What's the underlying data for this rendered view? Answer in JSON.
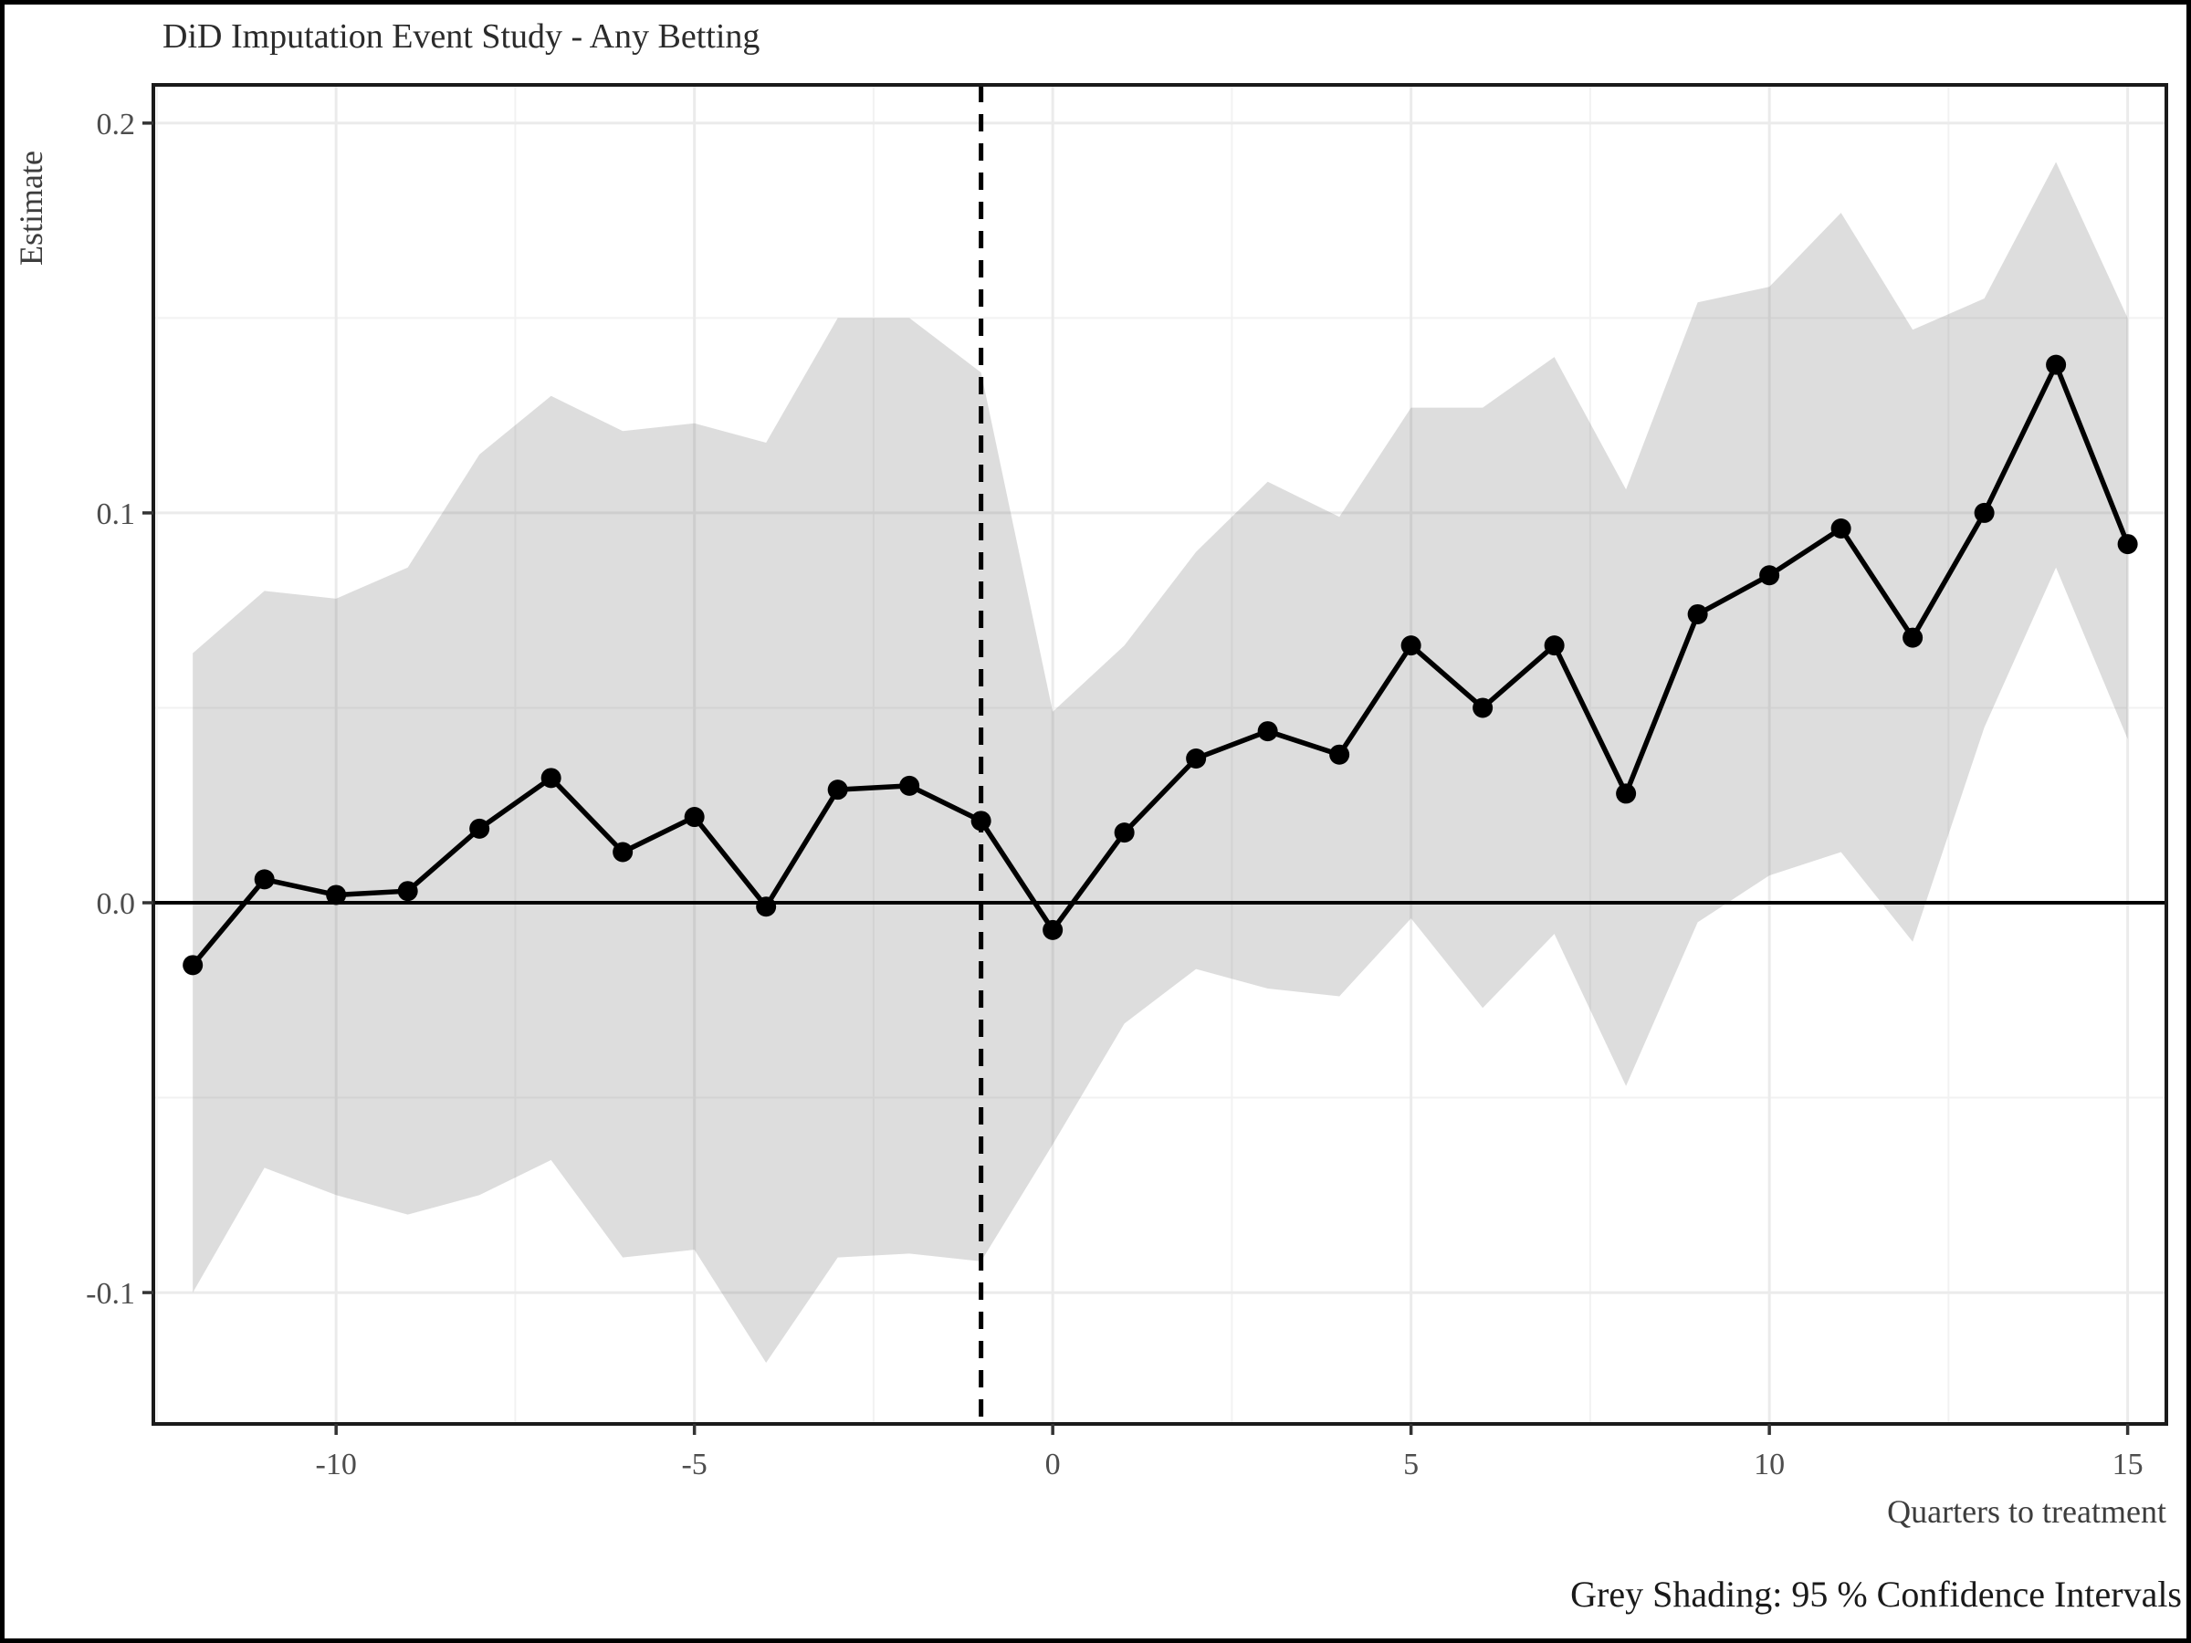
{
  "title": "DiD Imputation Event Study - Any Betting",
  "footer": "Grey Shading: 95 % Confidence Intervals",
  "chart_data": {
    "type": "line",
    "title": "DiD Imputation Event Study - Any Betting",
    "subtitle": "",
    "xlabel": "Quarters to treatment",
    "ylabel": "Estimate",
    "xlim": [
      -12.55,
      15.54
    ],
    "ylim": [
      -0.1337,
      0.2098
    ],
    "grid": true,
    "legend_position": "none",
    "band_meaning": "95 % Confidence Intervals (grey shading)",
    "reference_lines": {
      "zero_line_y": 0.0,
      "treatment_dashed_x": -1
    },
    "x_major_ticks": [
      {
        "v": -10,
        "label": "-10"
      },
      {
        "v": -5,
        "label": "-5"
      },
      {
        "v": 0,
        "label": "0"
      },
      {
        "v": 5,
        "label": "5"
      },
      {
        "v": 10,
        "label": "10"
      },
      {
        "v": 15,
        "label": "15"
      }
    ],
    "x_minor_ticks": [
      -12.5,
      -7.5,
      -2.5,
      2.5,
      7.5,
      12.5
    ],
    "y_major_ticks": [
      {
        "v": 0.2,
        "label": "0.2"
      },
      {
        "v": 0.1,
        "label": "0.1"
      },
      {
        "v": 0.0,
        "label": "0.0"
      },
      {
        "v": -0.1,
        "label": "-0.1"
      }
    ],
    "y_minor_ticks": [
      0.15,
      0.05,
      -0.05
    ],
    "series": [
      {
        "name": "estimate",
        "points": [
          {
            "x": -12,
            "estimate": -0.016,
            "lower": -0.1,
            "upper": 0.064
          },
          {
            "x": -11,
            "estimate": 0.006,
            "lower": -0.068,
            "upper": 0.08
          },
          {
            "x": -10,
            "estimate": 0.002,
            "lower": -0.075,
            "upper": 0.078
          },
          {
            "x": -9,
            "estimate": 0.003,
            "lower": -0.08,
            "upper": 0.086
          },
          {
            "x": -8,
            "estimate": 0.019,
            "lower": -0.075,
            "upper": 0.115
          },
          {
            "x": -7,
            "estimate": 0.032,
            "lower": -0.066,
            "upper": 0.13
          },
          {
            "x": -6,
            "estimate": 0.013,
            "lower": -0.091,
            "upper": 0.121
          },
          {
            "x": -5,
            "estimate": 0.022,
            "lower": -0.089,
            "upper": 0.123
          },
          {
            "x": -4,
            "estimate": -0.001,
            "lower": -0.118,
            "upper": 0.118
          },
          {
            "x": -3,
            "estimate": 0.029,
            "lower": -0.091,
            "upper": 0.15
          },
          {
            "x": -2,
            "estimate": 0.03,
            "lower": -0.09,
            "upper": 0.15
          },
          {
            "x": -1,
            "estimate": 0.021,
            "lower": -0.092,
            "upper": 0.136
          },
          {
            "x": 0,
            "estimate": -0.007,
            "lower": -0.062,
            "upper": 0.049
          },
          {
            "x": 1,
            "estimate": 0.018,
            "lower": -0.031,
            "upper": 0.066
          },
          {
            "x": 2,
            "estimate": 0.037,
            "lower": -0.017,
            "upper": 0.09
          },
          {
            "x": 3,
            "estimate": 0.044,
            "lower": -0.022,
            "upper": 0.108
          },
          {
            "x": 4,
            "estimate": 0.038,
            "lower": -0.024,
            "upper": 0.099
          },
          {
            "x": 5,
            "estimate": 0.066,
            "lower": -0.004,
            "upper": 0.127
          },
          {
            "x": 6,
            "estimate": 0.05,
            "lower": -0.027,
            "upper": 0.127
          },
          {
            "x": 7,
            "estimate": 0.066,
            "lower": -0.008,
            "upper": 0.14
          },
          {
            "x": 8,
            "estimate": 0.028,
            "lower": -0.047,
            "upper": 0.106
          },
          {
            "x": 9,
            "estimate": 0.074,
            "lower": -0.005,
            "upper": 0.154
          },
          {
            "x": 10,
            "estimate": 0.084,
            "lower": 0.007,
            "upper": 0.158
          },
          {
            "x": 11,
            "estimate": 0.096,
            "lower": 0.013,
            "upper": 0.177
          },
          {
            "x": 12,
            "estimate": 0.068,
            "lower": -0.01,
            "upper": 0.147
          },
          {
            "x": 13,
            "estimate": 0.1,
            "lower": 0.045,
            "upper": 0.155
          },
          {
            "x": 14,
            "estimate": 0.138,
            "lower": 0.086,
            "upper": 0.19
          },
          {
            "x": 15,
            "estimate": 0.092,
            "lower": 0.042,
            "upper": 0.15
          }
        ]
      }
    ],
    "colors": {
      "line": "#000000",
      "point": "#000000",
      "band_fill": "rgba(128,128,128,0.27)",
      "grid_major": "#ebebeb",
      "grid_minor": "#f2f2f2",
      "panel_border": "#1a1a1a",
      "figure_border": "#000000",
      "zero_line": "#000000",
      "dashed_line": "#000000",
      "tick_mark": "#333333"
    }
  }
}
